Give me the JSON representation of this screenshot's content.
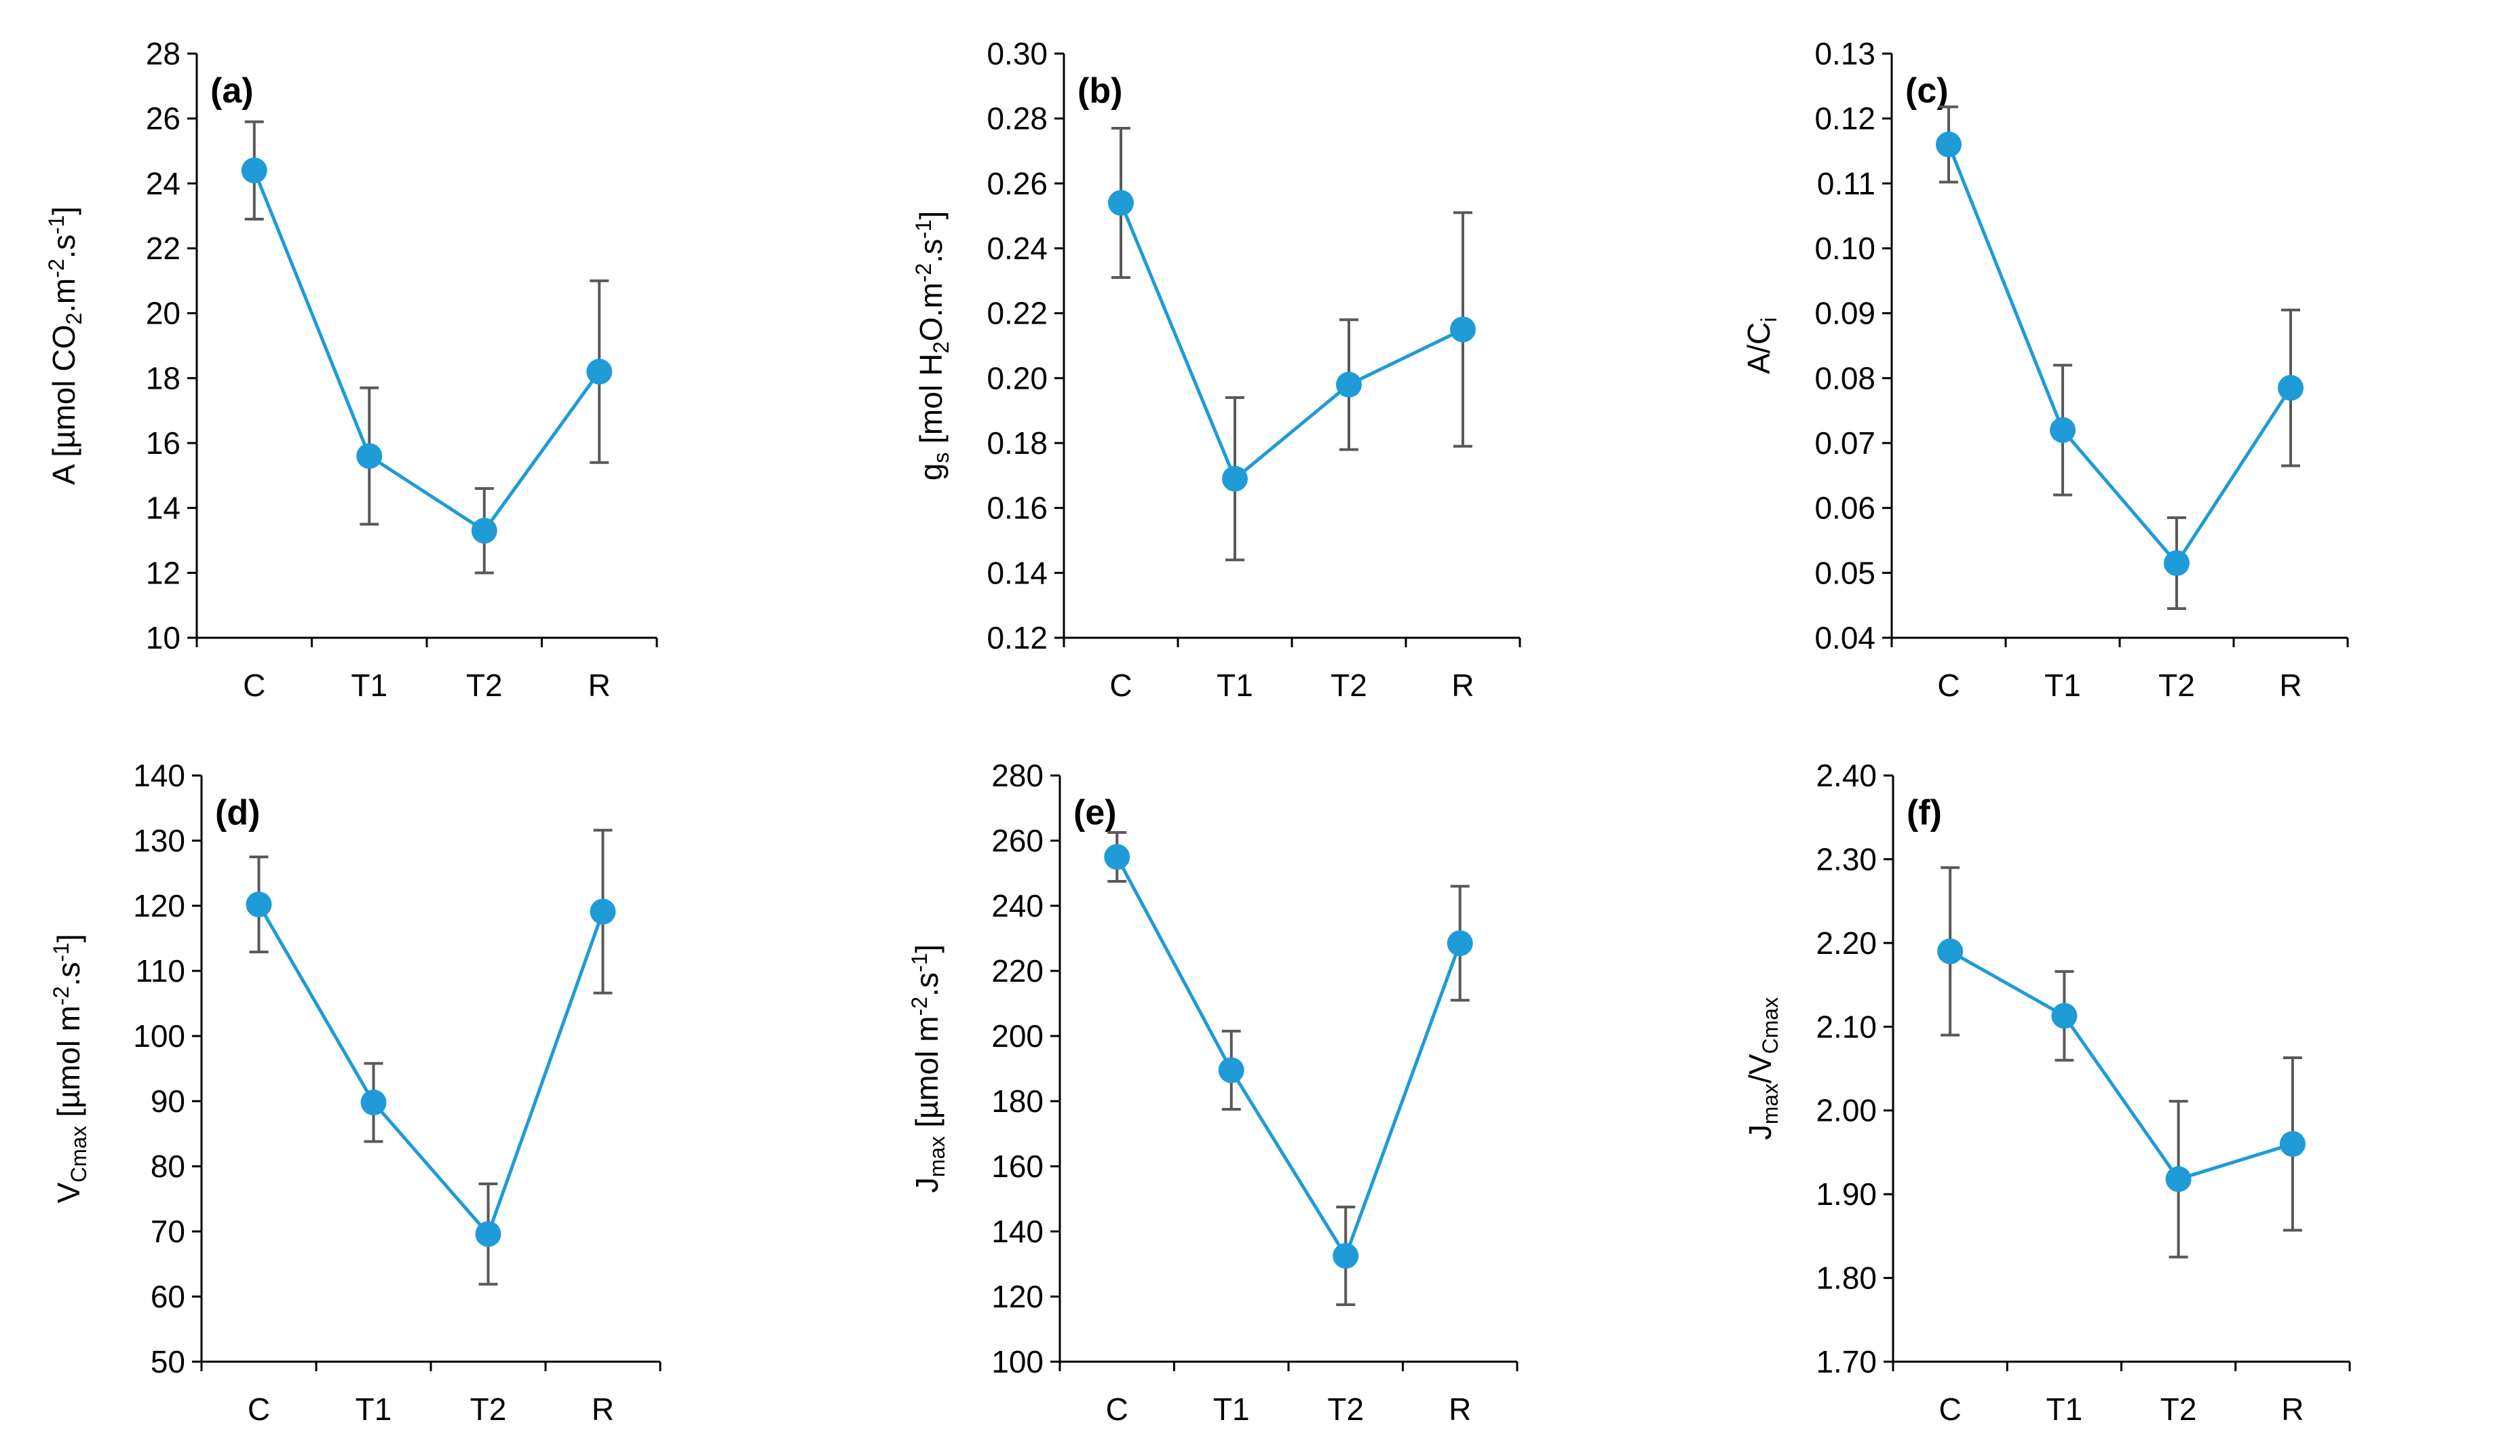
{
  "colors": {
    "series": "#1f9bd7",
    "error_bar": "#595959",
    "axis": "#000000"
  },
  "chart_data": [
    {
      "type": "line",
      "label": "(a)",
      "ylabel": {
        "main": "A [µmol CO",
        "sub": "2",
        "rest": ".m",
        "sup": "-2",
        "rest2": ".s",
        "sup2": "-1",
        "end": "]"
      },
      "ylim": [
        10,
        28
      ],
      "ystep": 2,
      "ydecimals": 0,
      "categories": [
        "C",
        "T1",
        "T2",
        "R"
      ],
      "values": [
        24.4,
        15.6,
        13.3,
        18.2
      ],
      "errors": [
        1.5,
        2.1,
        1.3,
        2.8
      ]
    },
    {
      "type": "line",
      "label": "(b)",
      "ylabel": {
        "main": "g",
        "sub": "s",
        "rest": " [mol H",
        "sub2": "2",
        "rest2": "O.m",
        "sup": "-2",
        "rest3": ".s",
        "sup2": "-1",
        "end": "]"
      },
      "ylim": [
        0.12,
        0.3
      ],
      "ystep": 0.02,
      "ydecimals": 2,
      "categories": [
        "C",
        "T1",
        "T2",
        "R"
      ],
      "values": [
        0.254,
        0.169,
        0.198,
        0.215
      ],
      "errors": [
        0.023,
        0.025,
        0.02,
        0.036
      ]
    },
    {
      "type": "line",
      "label": "(c)",
      "ylabel": {
        "main": "A/C",
        "sub": "i"
      },
      "ylim": [
        0.04,
        0.13
      ],
      "ystep": 0.01,
      "ydecimals": 2,
      "categories": [
        "C",
        "T1",
        "T2",
        "R"
      ],
      "values": [
        0.116,
        0.072,
        0.0515,
        0.0785
      ],
      "errors": [
        0.0058,
        0.01,
        0.007,
        0.012
      ]
    },
    {
      "type": "line",
      "label": "(d)",
      "ylabel": {
        "main": "V",
        "sub": "Cmax",
        "rest": " [µmol m",
        "sup": "-2",
        "rest2": ".s",
        "sup2": "-1",
        "end": "]"
      },
      "ylim": [
        50,
        140
      ],
      "ystep": 10,
      "ydecimals": 0,
      "categories": [
        "C",
        "T1",
        "T2",
        "R"
      ],
      "values": [
        120.2,
        89.8,
        69.6,
        119.1
      ],
      "errors": [
        7.3,
        6.0,
        7.7,
        12.5
      ]
    },
    {
      "type": "line",
      "label": "(e)",
      "ylabel": {
        "main": "J",
        "sub": "max",
        "rest": " [µmol m",
        "sup": "-2",
        "rest2": ".s",
        "sup2": "-1",
        "end": "]"
      },
      "ylim": [
        100,
        280
      ],
      "ystep": 20,
      "ydecimals": 0,
      "categories": [
        "C",
        "T1",
        "T2",
        "R"
      ],
      "values": [
        255,
        189.5,
        132.5,
        228.5
      ],
      "errors": [
        7.5,
        12.0,
        15.0,
        17.5
      ]
    },
    {
      "type": "line",
      "label": "(f)",
      "ylabel": {
        "main": "J",
        "sub": "max",
        "rest": "/V",
        "sub2": "Cmax"
      },
      "ylim": [
        1.7,
        2.4
      ],
      "ystep": 0.1,
      "ydecimals": 2,
      "categories": [
        "C",
        "T1",
        "T2",
        "R"
      ],
      "values": [
        2.19,
        2.113,
        1.918,
        1.96
      ],
      "errors": [
        0.1,
        0.053,
        0.093,
        0.103
      ]
    }
  ]
}
